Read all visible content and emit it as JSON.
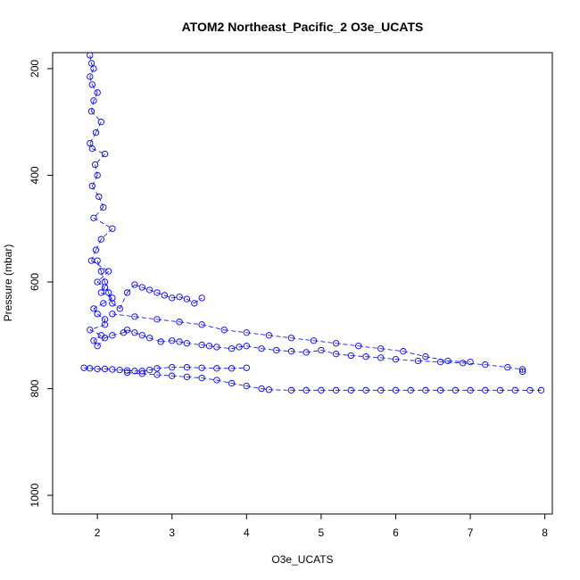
{
  "chart_data": {
    "type": "scatter",
    "title": "ATOM2 Northeast_Pacific_2 O3e_UCATS",
    "xlabel": "O3e_UCATS",
    "ylabel": "Pressure (mbar)",
    "xlim": [
      1.4,
      8.1
    ],
    "ylim": [
      1035,
      170
    ],
    "y_reversed": true,
    "x_ticks": [
      2,
      3,
      4,
      5,
      6,
      7,
      8
    ],
    "y_ticks": [
      200,
      400,
      600,
      800,
      1000
    ],
    "x_tick_labels": [
      "2",
      "3",
      "4",
      "5",
      "6",
      "7",
      "8"
    ],
    "y_tick_labels": [
      "200",
      "400",
      "600",
      "800",
      "1000"
    ],
    "grid": false,
    "marker": "open-circle",
    "line_style": "dashed",
    "series_color": "#0000ff",
    "series": [
      {
        "name": "",
        "x": [
          1.9,
          1.92,
          1.95,
          1.9,
          1.93,
          2.0,
          1.95,
          1.92,
          2.05,
          1.98,
          1.9,
          1.93,
          2.1,
          1.97,
          2.0,
          1.93,
          2.02,
          2.08,
          1.95,
          2.2,
          2.05,
          1.98,
          1.92,
          2.15,
          2.0,
          2.1,
          2.05,
          2.2,
          2.08,
          1.95,
          2.0,
          2.1,
          2.1,
          1.9,
          2.05,
          1.95,
          2.0,
          2.1,
          2.2,
          2.35,
          2.4,
          2.5,
          2.6,
          2.7,
          2.85,
          3.0,
          3.1,
          3.2,
          3.4,
          3.5,
          3.6,
          3.8,
          3.9,
          4.0,
          4.2,
          4.4,
          4.6,
          4.8,
          5.0,
          5.2,
          5.4,
          5.6,
          5.8,
          6.0,
          6.3,
          6.6,
          6.9,
          7.2,
          7.5,
          7.7,
          7.7
        ],
        "y": [
          175,
          190,
          200,
          215,
          230,
          245,
          260,
          280,
          300,
          320,
          340,
          350,
          360,
          380,
          400,
          420,
          440,
          460,
          480,
          500,
          520,
          540,
          560,
          580,
          600,
          610,
          620,
          630,
          640,
          650,
          660,
          670,
          680,
          690,
          700,
          710,
          720,
          705,
          700,
          695,
          690,
          695,
          700,
          705,
          712,
          710,
          712,
          715,
          718,
          720,
          722,
          725,
          722,
          720,
          725,
          728,
          730,
          732,
          728,
          735,
          738,
          740,
          742,
          745,
          748,
          750,
          752,
          755,
          760,
          764,
          768
        ]
      },
      {
        "name": "",
        "x": [
          1.82,
          1.9,
          2.0,
          2.1,
          2.2,
          2.3,
          2.4,
          2.5,
          2.6,
          2.7,
          2.8,
          3.0,
          3.2,
          3.4,
          3.6,
          3.8,
          4.0
        ],
        "y": [
          761,
          762,
          763,
          763,
          764,
          765,
          766,
          767,
          767,
          765,
          762,
          760,
          760,
          761,
          762,
          762,
          761
        ]
      },
      {
        "name": "",
        "x": [
          2.4,
          2.6,
          2.8,
          3.0,
          3.2,
          3.4,
          3.6,
          3.8,
          4.0,
          4.2,
          4.3,
          4.6,
          4.8,
          5.0,
          5.2,
          5.4,
          5.6,
          5.8,
          6.0,
          6.2,
          6.4,
          6.6,
          6.8,
          7.0,
          7.2,
          7.4,
          7.6,
          7.8,
          7.95
        ],
        "y": [
          770,
          772,
          774,
          776,
          778,
          780,
          784,
          790,
          795,
          800,
          802,
          803,
          803,
          803,
          803,
          803,
          803,
          803,
          803,
          803,
          803,
          803,
          803,
          803,
          803,
          803,
          803,
          803,
          803
        ]
      },
      {
        "name": "",
        "x": [
          2.0,
          2.05,
          2.1,
          2.15,
          2.2,
          2.3,
          2.4,
          2.5,
          2.6,
          2.7,
          2.8,
          2.9,
          3.0,
          3.1,
          3.2,
          3.3,
          3.4
        ],
        "y": [
          560,
          580,
          600,
          620,
          640,
          650,
          620,
          605,
          610,
          615,
          620,
          625,
          630,
          628,
          632,
          640,
          630
        ]
      },
      {
        "name": "",
        "x": [
          2.2,
          2.5,
          2.8,
          3.1,
          3.4,
          3.7,
          4.0,
          4.3,
          4.6,
          4.9,
          5.2,
          5.5,
          5.8,
          6.1,
          6.4,
          6.7,
          7.0
        ],
        "y": [
          660,
          665,
          670,
          675,
          680,
          690,
          695,
          700,
          705,
          710,
          715,
          720,
          725,
          730,
          740,
          748,
          750
        ]
      }
    ]
  }
}
